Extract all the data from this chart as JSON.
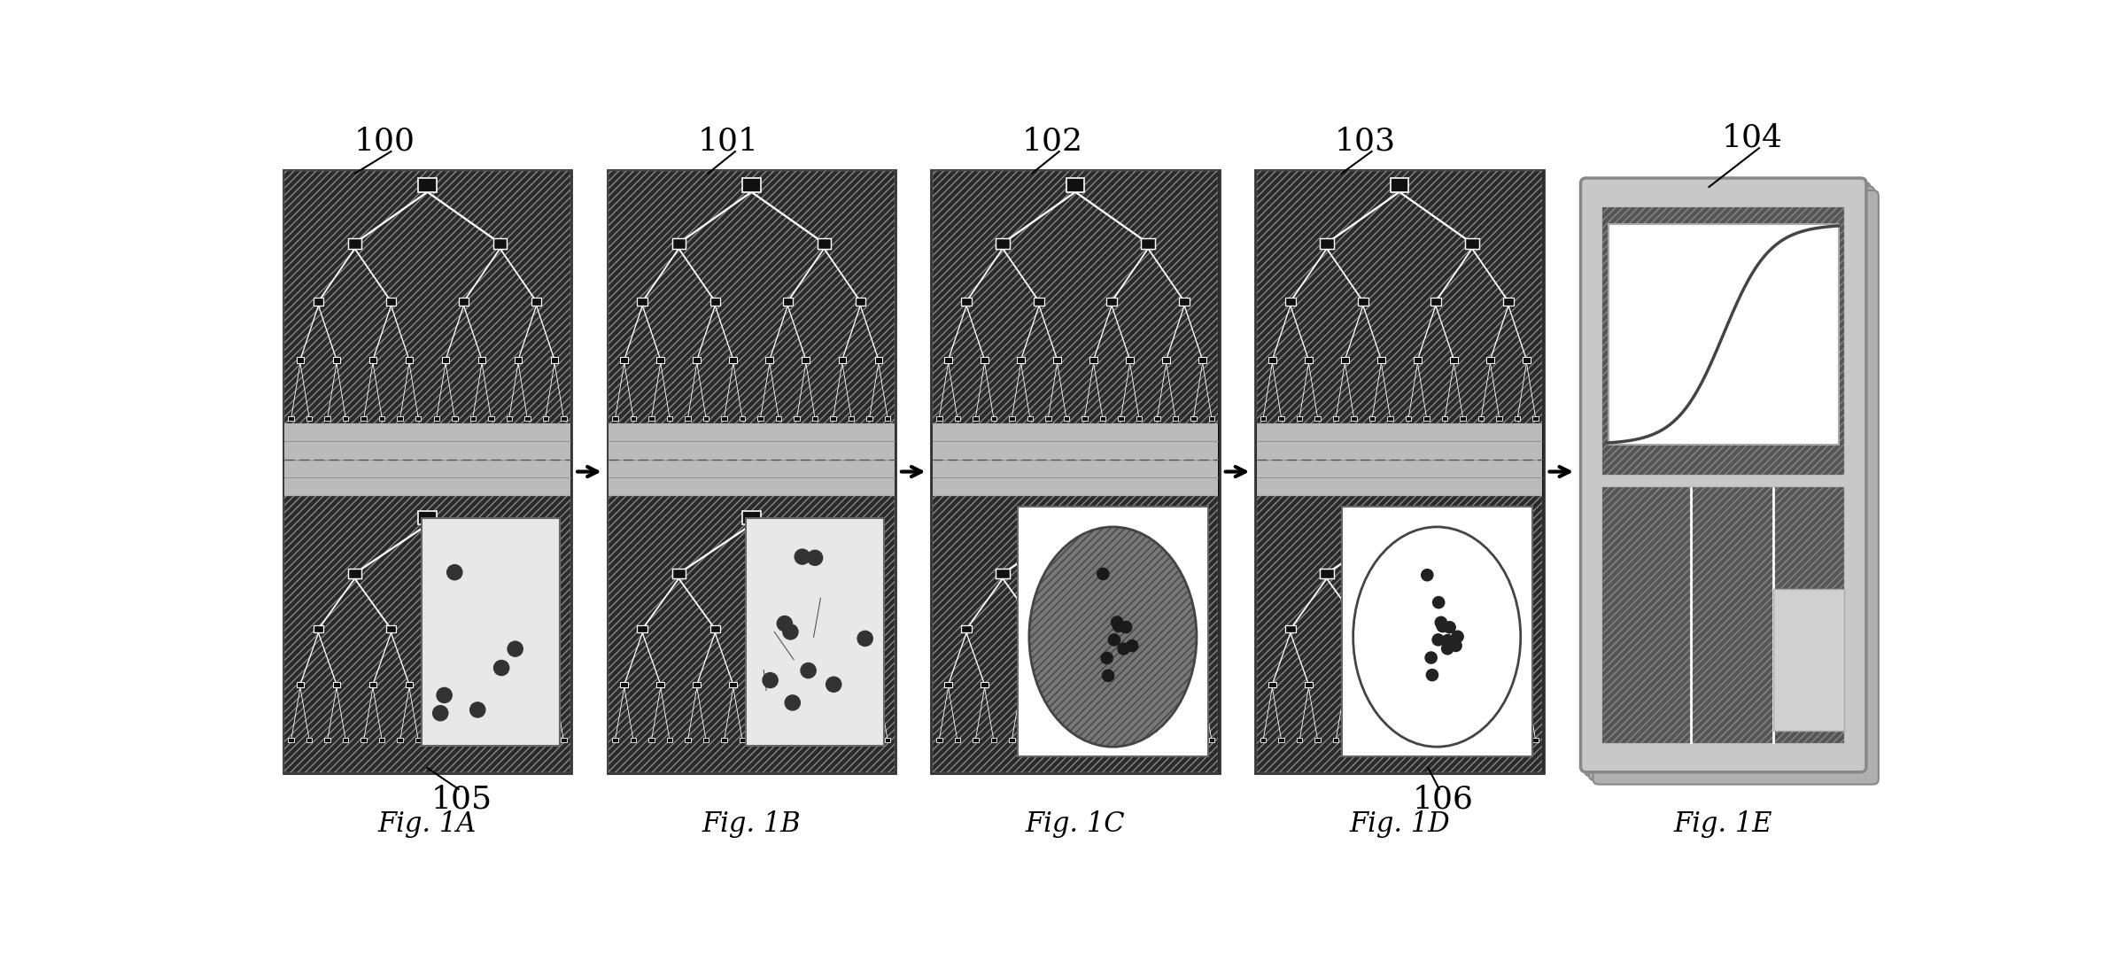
{
  "bg_color": "#ffffff",
  "fig_labels": [
    "Fig. 1A",
    "Fig. 1B",
    "Fig. 1C",
    "Fig. 1D",
    "Fig. 1E"
  ],
  "ref_numbers": [
    "100",
    "101",
    "102",
    "103",
    "104"
  ],
  "ref_numbers_bottom": [
    "105",
    "106"
  ],
  "dark": "#0a0a0a",
  "med_gray": "#999999",
  "light_gray": "#cccccc",
  "dot_gray": "#bbbbbb",
  "white": "#ffffff"
}
